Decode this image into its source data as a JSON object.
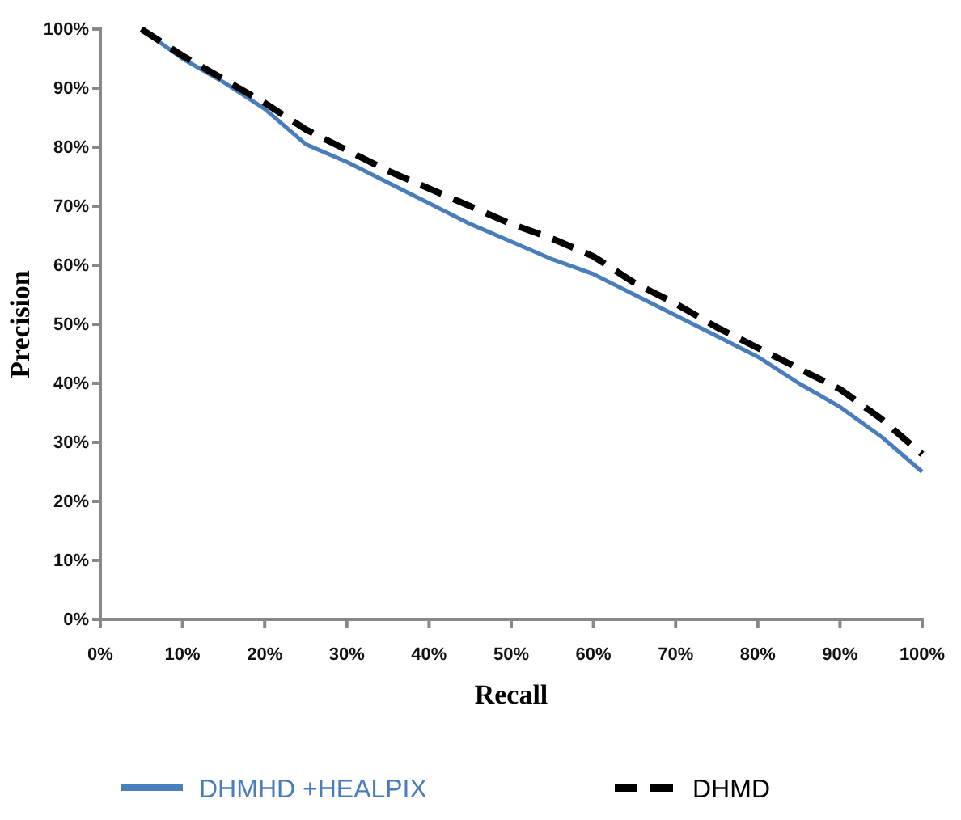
{
  "chart_data": {
    "type": "line",
    "xlabel": "Recall",
    "ylabel": "Precision",
    "x": [
      5,
      10,
      15,
      20,
      25,
      30,
      35,
      40,
      45,
      50,
      55,
      60,
      65,
      70,
      75,
      80,
      85,
      90,
      95,
      100
    ],
    "series": [
      {
        "name": "DHMHD +HEALPIX",
        "color": "#4a7ebb",
        "line_style": "solid",
        "values": [
          100,
          95,
          91,
          86.5,
          80.5,
          77.5,
          74,
          70.5,
          67,
          64,
          61,
          58.5,
          55,
          51.5,
          48,
          44.5,
          40,
          36,
          31,
          25
        ]
      },
      {
        "name": "DHMD",
        "color": "#000000",
        "line_style": "dashed",
        "values": [
          100,
          95.5,
          91.5,
          87.5,
          83,
          79.5,
          76,
          73,
          70,
          67,
          64.5,
          61.5,
          57,
          53.5,
          49.5,
          46,
          42.5,
          39,
          34,
          28
        ]
      }
    ],
    "xlim": [
      0,
      100
    ],
    "ylim": [
      0,
      100
    ],
    "xticks": [
      {
        "value": 0,
        "label": "0%"
      },
      {
        "value": 10,
        "label": "10%"
      },
      {
        "value": 20,
        "label": "20%"
      },
      {
        "value": 30,
        "label": "30%"
      },
      {
        "value": 40,
        "label": "40%"
      },
      {
        "value": 50,
        "label": "50%"
      },
      {
        "value": 60,
        "label": "60%"
      },
      {
        "value": 70,
        "label": "70%"
      },
      {
        "value": 80,
        "label": "80%"
      },
      {
        "value": 90,
        "label": "90%"
      },
      {
        "value": 100,
        "label": "100%"
      }
    ],
    "yticks": [
      {
        "value": 0,
        "label": "0%"
      },
      {
        "value": 10,
        "label": "10%"
      },
      {
        "value": 20,
        "label": "20%"
      },
      {
        "value": 30,
        "label": "30%"
      },
      {
        "value": 40,
        "label": "40%"
      },
      {
        "value": 50,
        "label": "50%"
      },
      {
        "value": 60,
        "label": "60%"
      },
      {
        "value": 70,
        "label": "70%"
      },
      {
        "value": 80,
        "label": "80%"
      },
      {
        "value": 90,
        "label": "90%"
      },
      {
        "value": 100,
        "label": "100%"
      }
    ],
    "grid": false,
    "legend": "bottom",
    "marker": "none"
  }
}
